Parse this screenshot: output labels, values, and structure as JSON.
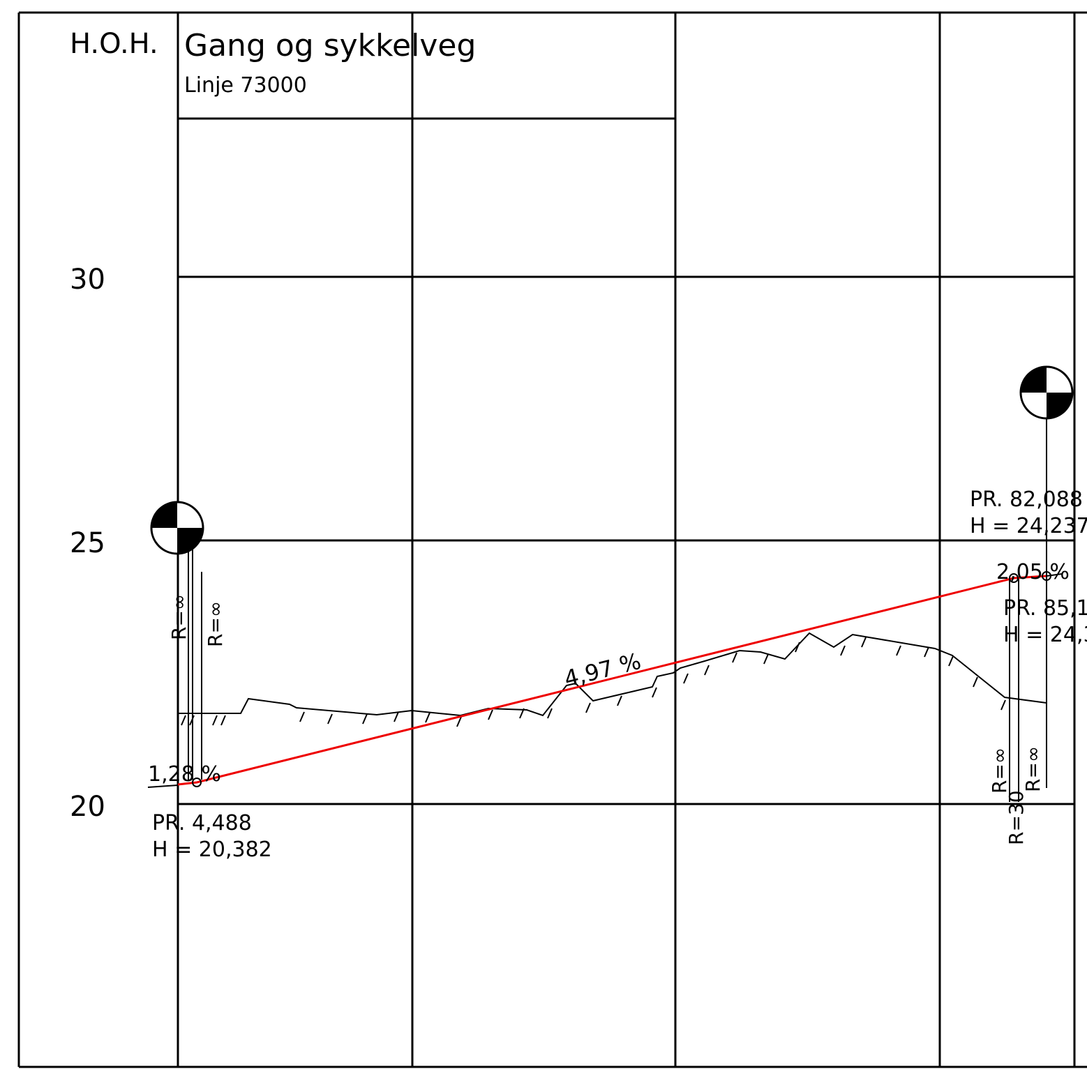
{
  "header": {
    "axis_label": "H.O.H.",
    "title": "Gang og sykkelveg",
    "subtitle": "Linje 73000"
  },
  "elevations": [
    "30",
    "25",
    "20"
  ],
  "grades": [
    "1,28 %",
    "4,97 %",
    "2,05 %"
  ],
  "points": [
    {
      "station": "PR. 4,488",
      "height": "H = 20,382"
    },
    {
      "station": "PR. 82,088",
      "height": "H = 24,237"
    },
    {
      "station": "PR. 85,1",
      "height": "H = 24,3"
    }
  ],
  "radii": [
    "R=∞",
    "R=∞",
    "R=∞",
    "R=∞",
    "R=30"
  ]
}
